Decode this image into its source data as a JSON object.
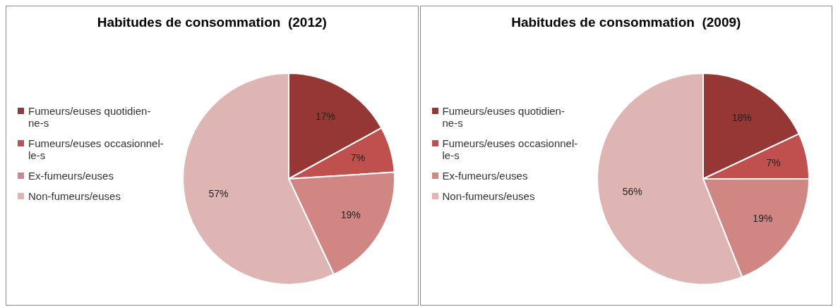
{
  "chart_data": [
    {
      "type": "pie",
      "title": "Habitudes de consommation  (2012)",
      "categories": [
        "Fumeurs/euses quotidien-ne-s",
        "Fumeurs/euses occasionnel-le-s",
        "Ex-fumeurs/euses",
        "Non-fumeurs/euses"
      ],
      "values": [
        17,
        7,
        19,
        57
      ],
      "colors": [
        "#953735",
        "#c0504d",
        "#d08784",
        "#dfb5b4"
      ],
      "value_labels": [
        "17%",
        "7%",
        "19%",
        "57%"
      ],
      "legend": "left"
    },
    {
      "type": "pie",
      "title": "Habitudes de consommation  (2009)",
      "categories": [
        "Fumeurs/euses quotidien-ne-s",
        "Fumeurs/euses occasionnel-le-s",
        "Ex-fumeurs/euses",
        "Non-fumeurs/euses"
      ],
      "values": [
        18,
        7,
        19,
        56
      ],
      "colors": [
        "#953735",
        "#c0504d",
        "#d08784",
        "#dfb5b4"
      ],
      "value_labels": [
        "18%",
        "7%",
        "19%",
        "56%"
      ],
      "legend": "left"
    }
  ]
}
